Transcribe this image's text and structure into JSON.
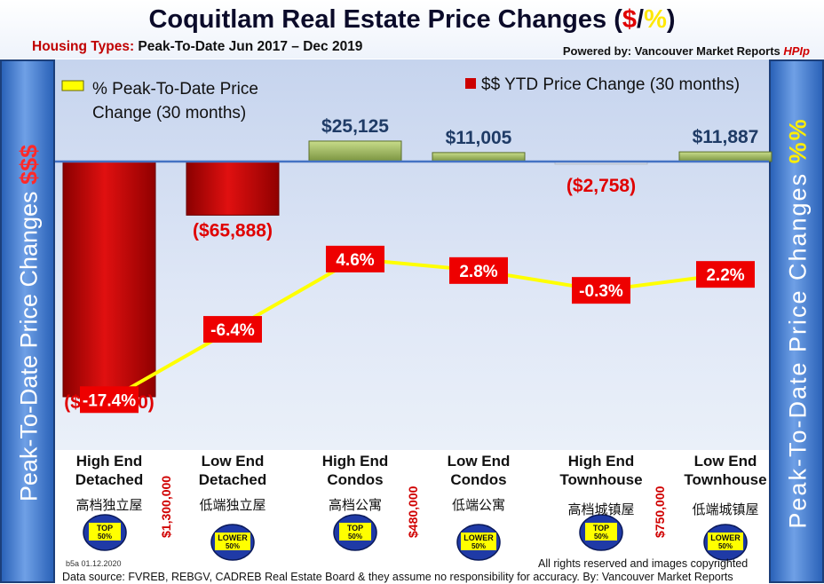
{
  "title": {
    "prefix": "Coquitlam Real Estate Price Changes (",
    "dollar": "$",
    "slash": "/",
    "pct": "%",
    "suffix": ")"
  },
  "subtitle": {
    "label": "Housing Types:",
    "text": " Peak-To-Date Jun 2017 – Dec 2019"
  },
  "powered_by": {
    "text": "Powered by: Vancouver Market Reports ",
    "brand": "HPIp"
  },
  "side_left": {
    "text": "Peak-To-Date Price Changes ",
    "symbol": "$$$"
  },
  "side_right": {
    "text": "Peak-To-Date  Price  Changes ",
    "symbol": "%%"
  },
  "colors": {
    "bar_negative": "#cc0000",
    "bar_positive": "#98b05a",
    "line": "#ffff00",
    "pct_box": "#ee0000",
    "axis": "#4472c4"
  },
  "chart_data": {
    "type": "bar",
    "categories": [
      "High End Detached",
      "Low End Detached",
      "High End Condos",
      "Low End Condos",
      "High End Townhouse",
      "Low End Townhouse"
    ],
    "series": [
      {
        "name": "$$ YTD Price Change (30 months)",
        "type": "bar",
        "values": [
          -289000,
          -65888,
          25125,
          11005,
          -2758,
          11887
        ],
        "labels": [
          "($289,000)",
          "($65,888)",
          "$25,125",
          "$11,005",
          "($2,758)",
          "$11,887"
        ]
      },
      {
        "name": "% Peak-To-Date Price Change (30 months)",
        "type": "line",
        "values": [
          -17.4,
          -6.4,
          4.6,
          2.8,
          -0.3,
          2.2
        ],
        "labels": [
          "-17.4%",
          "-6.4%",
          "4.6%",
          "2.8%",
          "-0.3%",
          "2.2%"
        ]
      }
    ],
    "legend": {
      "line_label_1": "% Peak-To-Date Price",
      "line_label_2": "Change (30 months)",
      "bar_label": "$$ YTD Price Change (30 months)"
    },
    "category_lines": [
      {
        "line1": "High End",
        "line2": "Detached",
        "cn": "高档独立屋",
        "badge_top": "TOP",
        "badge_bottom": "50%",
        "badge_kind": "top"
      },
      {
        "line1": "Low End",
        "line2": "Detached",
        "cn": "低端独立屋",
        "badge_top": "LOWER",
        "badge_bottom": "50%",
        "badge_kind": "lower"
      },
      {
        "line1": "High End",
        "line2": "Condos",
        "cn": "高档公寓",
        "badge_top": "TOP",
        "badge_bottom": "50%",
        "badge_kind": "top"
      },
      {
        "line1": "Low End",
        "line2": "Condos",
        "cn": "低端公寓",
        "badge_top": "LOWER",
        "badge_bottom": "50%",
        "badge_kind": "lower"
      },
      {
        "line1": "High End",
        "line2": "Townhouse",
        "cn": "高档城镇屋",
        "badge_top": "TOP",
        "badge_bottom": "50%",
        "badge_kind": "top"
      },
      {
        "line1": "Low End",
        "line2": "Townhouse",
        "cn": "低端城镇屋",
        "badge_top": "LOWER",
        "badge_bottom": "50%",
        "badge_kind": "lower"
      }
    ],
    "price_bands": [
      "$1,300,000",
      "$480,000",
      "$750,000"
    ]
  },
  "footer": {
    "code": "b5a 01.12.2020",
    "rights": "All rights reserved and  images copyrighted",
    "source": "Data source: FVREB, REBGV, CADREB Real Estate Board & they assume no responsibility for accuracy. By: Vancouver Market Reports"
  }
}
